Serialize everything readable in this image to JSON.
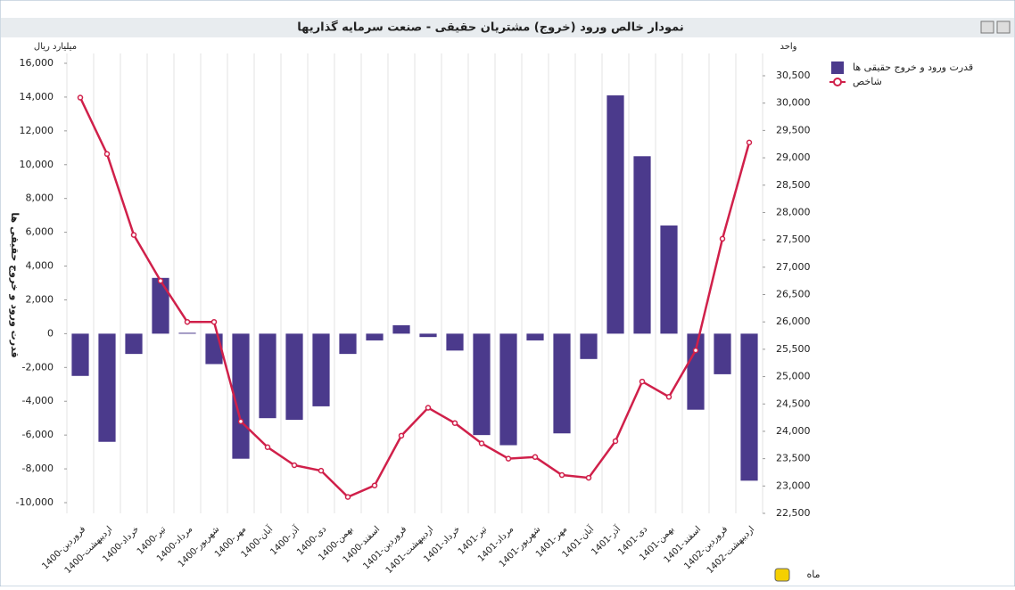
{
  "chart_data": {
    "type": "bar-line",
    "title": "نمودار خالص ورود (خروج) مشتریان حقیقی - صنعت سرمایه گذاریها",
    "y_unit": "میلیارد ریال",
    "y2_unit": "واحد",
    "y_label": "قدرت ورود و خروج حقیقی ها",
    "x_label": "ماه",
    "categories": [
      "1400-فروردین",
      "1400-اردیبهشت",
      "1400-خرداد",
      "1400-تیر",
      "1400-مرداد",
      "1400-شهریور",
      "1400-مهر",
      "1400-آبان",
      "1400-آذر",
      "1400-دی",
      "1400-بهمن",
      "1400-اسفند",
      "1401-فروردین",
      "1401-اردیبهشت",
      "1401-خرداد",
      "1401-تیر",
      "1401-مرداد",
      "1401-شهریور",
      "1401-مهر",
      "1401-آبان",
      "1401-آذر",
      "1401-دی",
      "1401-بهمن",
      "1401-اسفند",
      "1402-فروردین",
      "1402-اردیبهشت"
    ],
    "series": [
      {
        "name": "قدرت ورود و خروج حقیقی ها",
        "type": "bar",
        "color": "#4b3a8c",
        "values": [
          -2500,
          -6400,
          -1200,
          3300,
          50,
          -1800,
          -7400,
          -5000,
          -5100,
          -4300,
          -1200,
          -400,
          500,
          -200,
          -1000,
          -6000,
          -6600,
          -400,
          -5900,
          -1500,
          14100,
          10500,
          6400,
          -4500,
          -2400,
          -8700
        ]
      },
      {
        "name": "شاخص",
        "type": "line",
        "axis": "y2",
        "color": "#d0204a",
        "values": [
          30100,
          29070,
          27590,
          26750,
          26000,
          26000,
          24180,
          23710,
          23380,
          23280,
          22800,
          23010,
          23920,
          24430,
          24150,
          23780,
          23500,
          23530,
          23200,
          23150,
          23820,
          24910,
          24630,
          25480,
          27520,
          29280
        ]
      }
    ],
    "ylim": [
      -10000,
      16000
    ],
    "yticks": [
      {
        "value": -10000,
        "label": "-10,000"
      },
      {
        "value": -8000,
        "label": "-8,000"
      },
      {
        "value": -6000,
        "label": "-6,000"
      },
      {
        "value": -4000,
        "label": "-4,000"
      },
      {
        "value": -2000,
        "label": "-2,000"
      },
      0,
      {
        "value": 2000,
        "label": "2,000"
      },
      {
        "value": 4000,
        "label": "4,000"
      },
      {
        "value": 6000,
        "label": "6,000"
      },
      {
        "value": 8000,
        "label": "8,000"
      },
      {
        "value": 10000,
        "label": "10,000"
      },
      {
        "value": 12000,
        "label": "12,000"
      },
      {
        "value": 14000,
        "label": "14,000"
      },
      {
        "value": 16000,
        "label": "16,000"
      }
    ],
    "y2lim": [
      22500,
      30500
    ],
    "y2ticks": [
      {
        "value": 22500,
        "label": "22,500"
      },
      {
        "value": 23000,
        "label": "23,000"
      },
      {
        "value": 23500,
        "label": "23,500"
      },
      {
        "value": 24000,
        "label": "24,000"
      },
      {
        "value": 24500,
        "label": "24,500"
      },
      {
        "value": 25000,
        "label": "25,000"
      },
      {
        "value": 25500,
        "label": "25,500"
      },
      {
        "value": 26000,
        "label": "26,000"
      },
      {
        "value": 26500,
        "label": "26,500"
      },
      {
        "value": 27000,
        "label": "27,000"
      },
      {
        "value": 27500,
        "label": "27,500"
      },
      {
        "value": 28000,
        "label": "28,000"
      },
      {
        "value": 28500,
        "label": "28,500"
      },
      {
        "value": 29000,
        "label": "29,000"
      },
      {
        "value": 29500,
        "label": "29,500"
      },
      {
        "value": 30000,
        "label": "30,000"
      },
      {
        "value": 30500,
        "label": "30,500"
      }
    ],
    "grid": true
  }
}
